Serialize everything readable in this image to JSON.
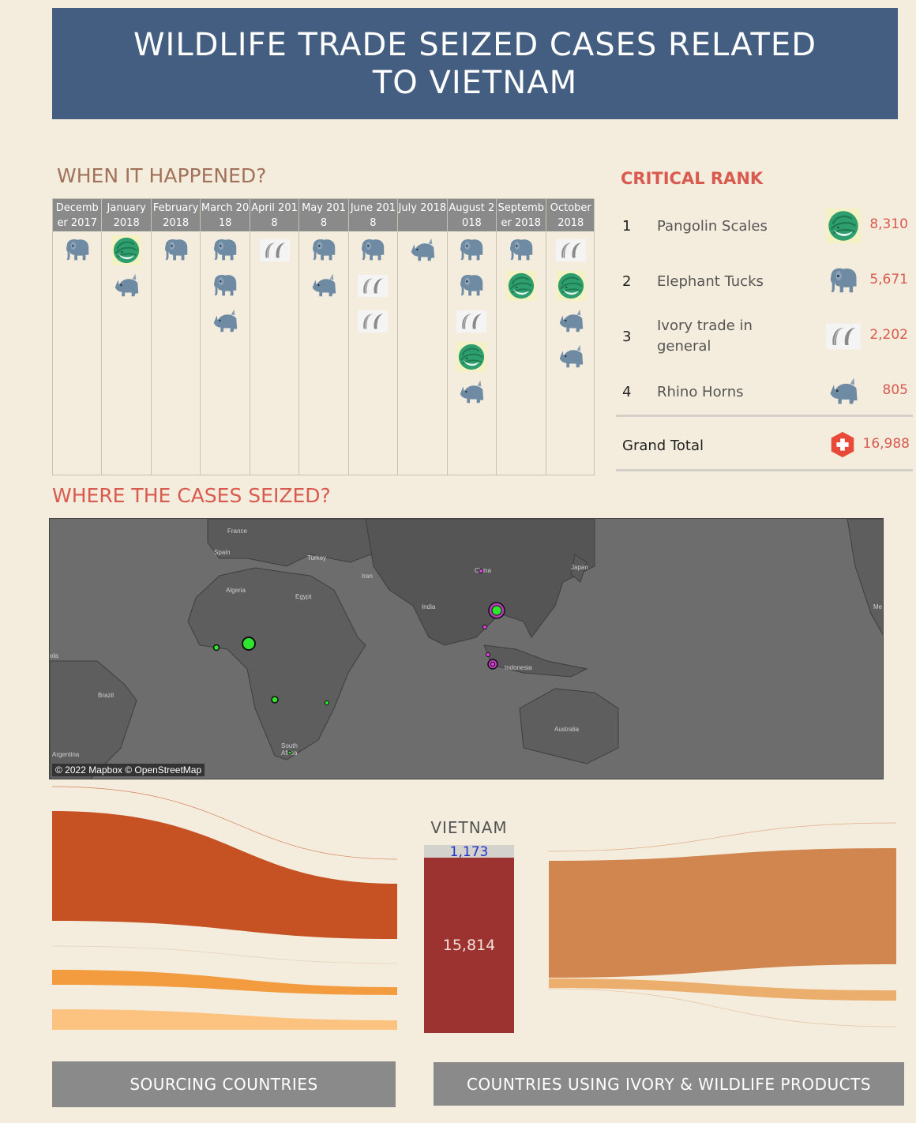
{
  "title": "WILDLIFE TRADE SEIZED CASES RELATED TO VIETNAM",
  "when_title": "WHEN IT HAPPENED?",
  "where_title": "WHERE THE CASES SEIZED?",
  "rank_title": "CRITICAL RANK",
  "timeline": [
    {
      "label": "December 2017",
      "icons": [
        "elephant"
      ]
    },
    {
      "label": "January 2018",
      "icons": [
        "pangolin",
        "rhino"
      ]
    },
    {
      "label": "February 2018",
      "icons": [
        "elephant"
      ]
    },
    {
      "label": "March 2018",
      "icons": [
        "elephant",
        "elephant",
        "rhino"
      ]
    },
    {
      "label": "April 2018",
      "icons": [
        "ivory"
      ]
    },
    {
      "label": "May 2018",
      "icons": [
        "elephant",
        "rhino"
      ]
    },
    {
      "label": "June 2018",
      "icons": [
        "elephant",
        "ivory",
        "ivory"
      ]
    },
    {
      "label": "July 2018",
      "icons": [
        "rhino"
      ]
    },
    {
      "label": "August 2018",
      "icons": [
        "elephant",
        "elephant",
        "ivory",
        "pangolin",
        "rhino"
      ],
      "more": "..."
    },
    {
      "label": "September 2018",
      "icons": [
        "elephant",
        "pangolin"
      ]
    },
    {
      "label": "October 2018",
      "icons": [
        "ivory",
        "pangolin",
        "rhino",
        "rhino"
      ]
    }
  ],
  "rank": {
    "rows": [
      {
        "num": "1",
        "name": "Pangolin Scales",
        "icon": "pangolin",
        "value": "8,310"
      },
      {
        "num": "2",
        "name": "Elephant Tucks",
        "icon": "elephant",
        "value": "5,671"
      },
      {
        "num": "3",
        "name": "Ivory trade in general",
        "icon": "ivory",
        "value": "2,202"
      },
      {
        "num": "4",
        "name": "Rhino Horns",
        "icon": "rhino",
        "value": "805"
      }
    ],
    "total_label": "Grand Total",
    "total_icon": "plus-icon",
    "total_value": "16,988"
  },
  "map": {
    "credit": "© 2022 Mapbox © OpenStreetMap",
    "place_labels": [
      "France",
      "Spain",
      "Turkey",
      "Iran",
      "China",
      "Japan",
      "Algeria",
      "Egypt",
      "India",
      "Indonesia",
      "Brazil",
      "Australia",
      "South Africa",
      "Argentina",
      "ola",
      "Me"
    ]
  },
  "sankey": {
    "center_label": "VIETNAM",
    "top_value": "1,173",
    "main_value": "15,814"
  },
  "buttons": {
    "sourcing": "SOURCING COUNTRIES",
    "using": "COUNTRIES USING IVORY & WILDLIFE PRODUCTS"
  },
  "colors": {
    "header": "#445e82",
    "accent": "#d95a4e",
    "bar_main": "#9c3330",
    "flow_dark": "#c65224",
    "flow_mid": "#f29b3f",
    "flow_light": "#fcc27f",
    "flow_right": "#d0864e"
  }
}
